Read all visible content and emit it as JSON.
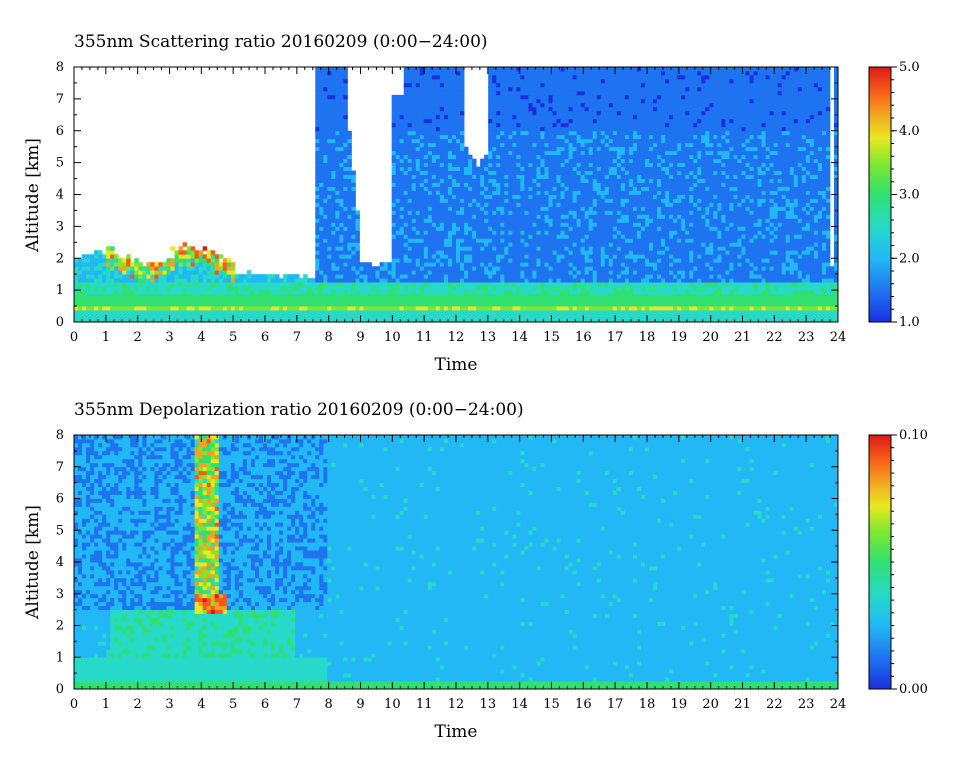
{
  "chart_data": [
    {
      "type": "heatmap",
      "title": "355nm Scattering ratio  20160209 (0:00−24:00)",
      "xlabel": "Time",
      "ylabel": "Altitude [km]",
      "xlim": [
        0,
        24
      ],
      "ylim": [
        0,
        8
      ],
      "x_ticks": [
        "0",
        "1",
        "2",
        "3",
        "4",
        "5",
        "6",
        "7",
        "8",
        "9",
        "10",
        "11",
        "12",
        "13",
        "14",
        "15",
        "16",
        "17",
        "18",
        "19",
        "20",
        "21",
        "22",
        "23",
        "24"
      ],
      "y_ticks": [
        "0",
        "1",
        "2",
        "3",
        "4",
        "5",
        "6",
        "7",
        "8"
      ],
      "colorbar": {
        "range": [
          1.0,
          5.0
        ],
        "ticks": [
          "1.0",
          "2.0",
          "3.0",
          "4.0",
          "5.0"
        ]
      },
      "colors": [
        "#1a2fe0",
        "#1e73f0",
        "#22b8f5",
        "#26d9c8",
        "#30e070",
        "#7ee830",
        "#e8e820",
        "#f5a020",
        "#f55a18",
        "#e01818"
      ],
      "features": [
        {
          "t_start": 0.0,
          "t_end": 7.6,
          "cloud_top_km": 2.0,
          "description_value": 2.4
        },
        {
          "t_start": 7.6,
          "t_end": 24.0,
          "cloud_top_km": 8.0,
          "description_value": 1.5
        },
        {
          "t_start": 9.0,
          "t_end": 9.9,
          "gap_bottom_km": 1.7
        },
        {
          "t_start": 12.3,
          "t_end": 13.0,
          "gap_bottom_km": 5.0
        }
      ]
    },
    {
      "type": "heatmap",
      "title": "355nm Depolarization ratio  20160209 (0:00−24:00)",
      "xlabel": "Time",
      "ylabel": "Altitude [km]",
      "xlim": [
        0,
        24
      ],
      "ylim": [
        0,
        8
      ],
      "x_ticks": [
        "0",
        "1",
        "2",
        "3",
        "4",
        "5",
        "6",
        "7",
        "8",
        "9",
        "10",
        "11",
        "12",
        "13",
        "14",
        "15",
        "16",
        "17",
        "18",
        "19",
        "20",
        "21",
        "22",
        "23",
        "24"
      ],
      "y_ticks": [
        "0",
        "1",
        "2",
        "3",
        "4",
        "5",
        "6",
        "7",
        "8"
      ],
      "colorbar": {
        "range": [
          0.0,
          0.1
        ],
        "ticks": [
          "0.00",
          "0.10"
        ]
      },
      "colors": [
        "#1a2fe0",
        "#1e73f0",
        "#22b8f5",
        "#26d9c8",
        "#30e070",
        "#7ee830",
        "#e8e820",
        "#f5a020",
        "#f55a18",
        "#e01818"
      ]
    }
  ]
}
